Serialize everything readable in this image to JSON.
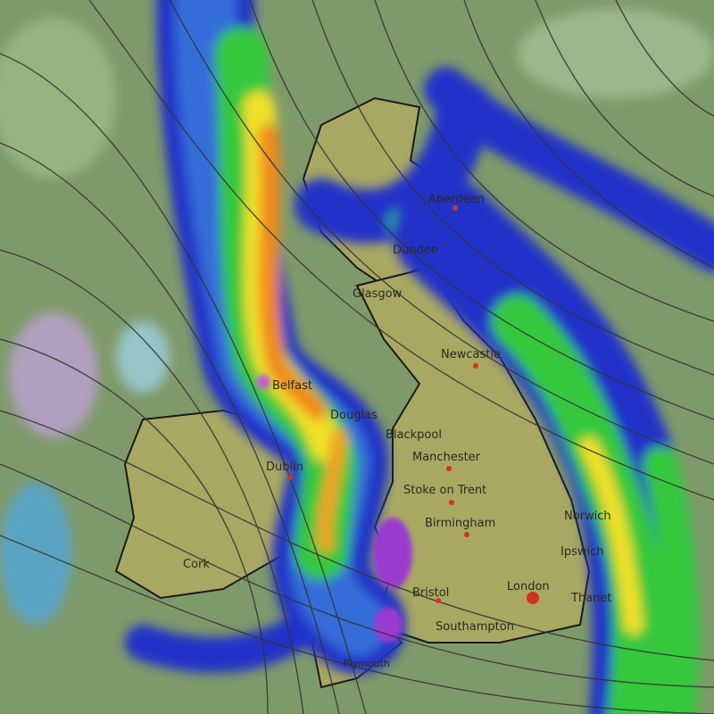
{
  "map": {
    "colors": {
      "sea": "#7f9a6a",
      "land": "#a9a862",
      "light_rain": "#4aa8e8",
      "moderate_rain": "#2233c8",
      "heavy_rain": "#34c83c",
      "very_heavy_rain": "#f0e02a",
      "intense_rain": "#f08a1e",
      "extreme_rain": "#e03a1a",
      "snow": "#b07ad8",
      "isobar": "#333333",
      "city_marker": "#d2321e"
    },
    "cities": [
      {
        "name": "Aberdeen"
      },
      {
        "name": "Dundee"
      },
      {
        "name": "Glasgow"
      },
      {
        "name": "Newcastle"
      },
      {
        "name": "Belfast"
      },
      {
        "name": "Douglas"
      },
      {
        "name": "Blackpool"
      },
      {
        "name": "Manchester"
      },
      {
        "name": "Dublin"
      },
      {
        "name": "Stoke on Trent"
      },
      {
        "name": "Birmingham"
      },
      {
        "name": "Norwich"
      },
      {
        "name": "Ipswich"
      },
      {
        "name": "Cork"
      },
      {
        "name": "Bristol"
      },
      {
        "name": "London"
      },
      {
        "name": "Thanet"
      },
      {
        "name": "Southampton"
      },
      {
        "name": "Plymouth"
      }
    ]
  }
}
